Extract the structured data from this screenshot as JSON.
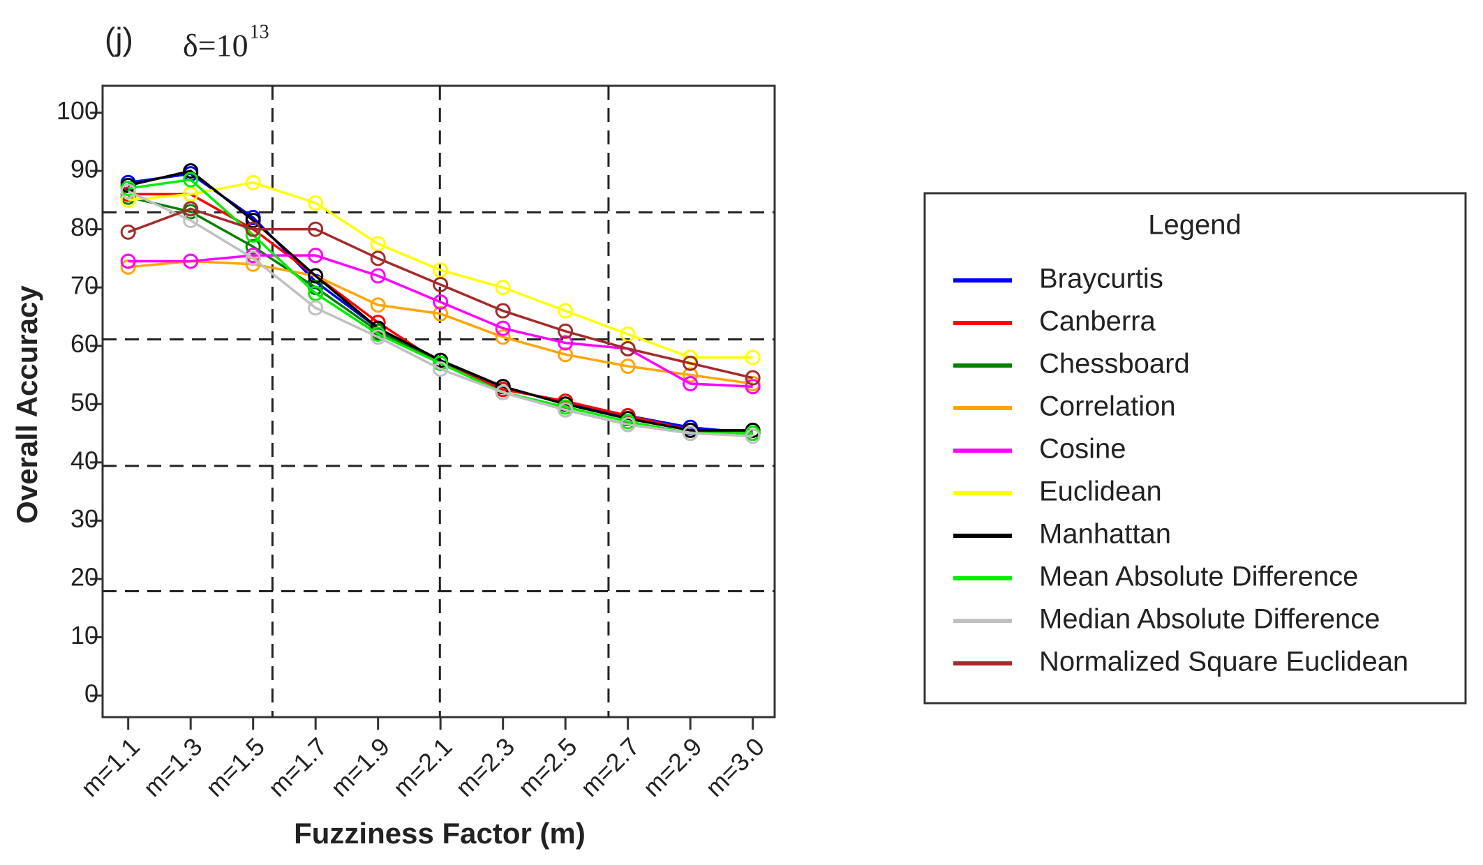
{
  "chart_data": {
    "type": "line",
    "panel_label": "(j)",
    "title": "δ=10",
    "title_exponent": "13",
    "x_label": "Fuzziness Factor (m)",
    "y_label": "Overall Accuracy",
    "categories": [
      "m=1.1",
      "m=1.3",
      "m=1.5",
      "m=1.7",
      "m=1.9",
      "m=2.1",
      "m=2.3",
      "m=2.5",
      "m=2.7",
      "m=2.9",
      "m=3.0"
    ],
    "xlim_index": [
      -0.41,
      10.35
    ],
    "ylim": [
      -3.7,
      104.6
    ],
    "yticks": [
      0,
      10,
      20,
      30,
      40,
      50,
      60,
      70,
      80,
      90,
      100
    ],
    "grid_y": [
      82.9,
      61.1,
      39.4,
      17.9
    ],
    "grid_x_index": [
      2.31,
      4.99,
      7.69
    ],
    "legend_title": "Legend",
    "series": [
      {
        "name": "Braycurtis",
        "color": "#0000ff",
        "values": [
          88,
          89.5,
          82,
          71,
          63,
          57,
          53,
          50,
          48,
          46,
          45
        ]
      },
      {
        "name": "Canberra",
        "color": "#ff0000",
        "values": [
          86,
          86,
          80,
          72,
          64,
          57,
          52.5,
          50.5,
          48,
          45.5,
          45
        ]
      },
      {
        "name": "Chessboard",
        "color": "#008000",
        "values": [
          85.5,
          83,
          77,
          70,
          62.5,
          57,
          52,
          49,
          46.5,
          45,
          45
        ]
      },
      {
        "name": "Correlation",
        "color": "#ffa500",
        "values": [
          73.5,
          74.5,
          74,
          72,
          67,
          65.5,
          61.5,
          58.5,
          56.5,
          55,
          53.5
        ]
      },
      {
        "name": "Cosine",
        "color": "#ff00ff",
        "values": [
          74.5,
          74.5,
          75.5,
          75.5,
          72,
          67.5,
          63,
          60.5,
          59.5,
          53.5,
          53
        ]
      },
      {
        "name": "Euclidean",
        "color": "#ffff00",
        "values": [
          85,
          86,
          88,
          84.5,
          77.5,
          73,
          70,
          66,
          62,
          58,
          58
        ]
      },
      {
        "name": "Manhattan",
        "color": "#000000",
        "values": [
          87.5,
          90,
          81.5,
          72,
          63,
          57.5,
          53,
          50,
          47.5,
          45.5,
          45.5
        ]
      },
      {
        "name": "Mean Absolute Difference",
        "color": "#00ee00",
        "values": [
          87,
          88.5,
          79,
          69,
          62,
          57,
          52,
          49.5,
          47,
          45,
          45
        ]
      },
      {
        "name": "Median Absolute Difference",
        "color": "#c0c0c0",
        "values": [
          86.5,
          81.5,
          75,
          66.5,
          61.5,
          56,
          52,
          49,
          46.5,
          45,
          44.5
        ]
      },
      {
        "name": "Normalized Square Euclidean",
        "color": "#a52a2a",
        "values": [
          79.5,
          83.5,
          80,
          80,
          75,
          70.5,
          66,
          62.5,
          59.5,
          57,
          54.5
        ]
      }
    ]
  }
}
